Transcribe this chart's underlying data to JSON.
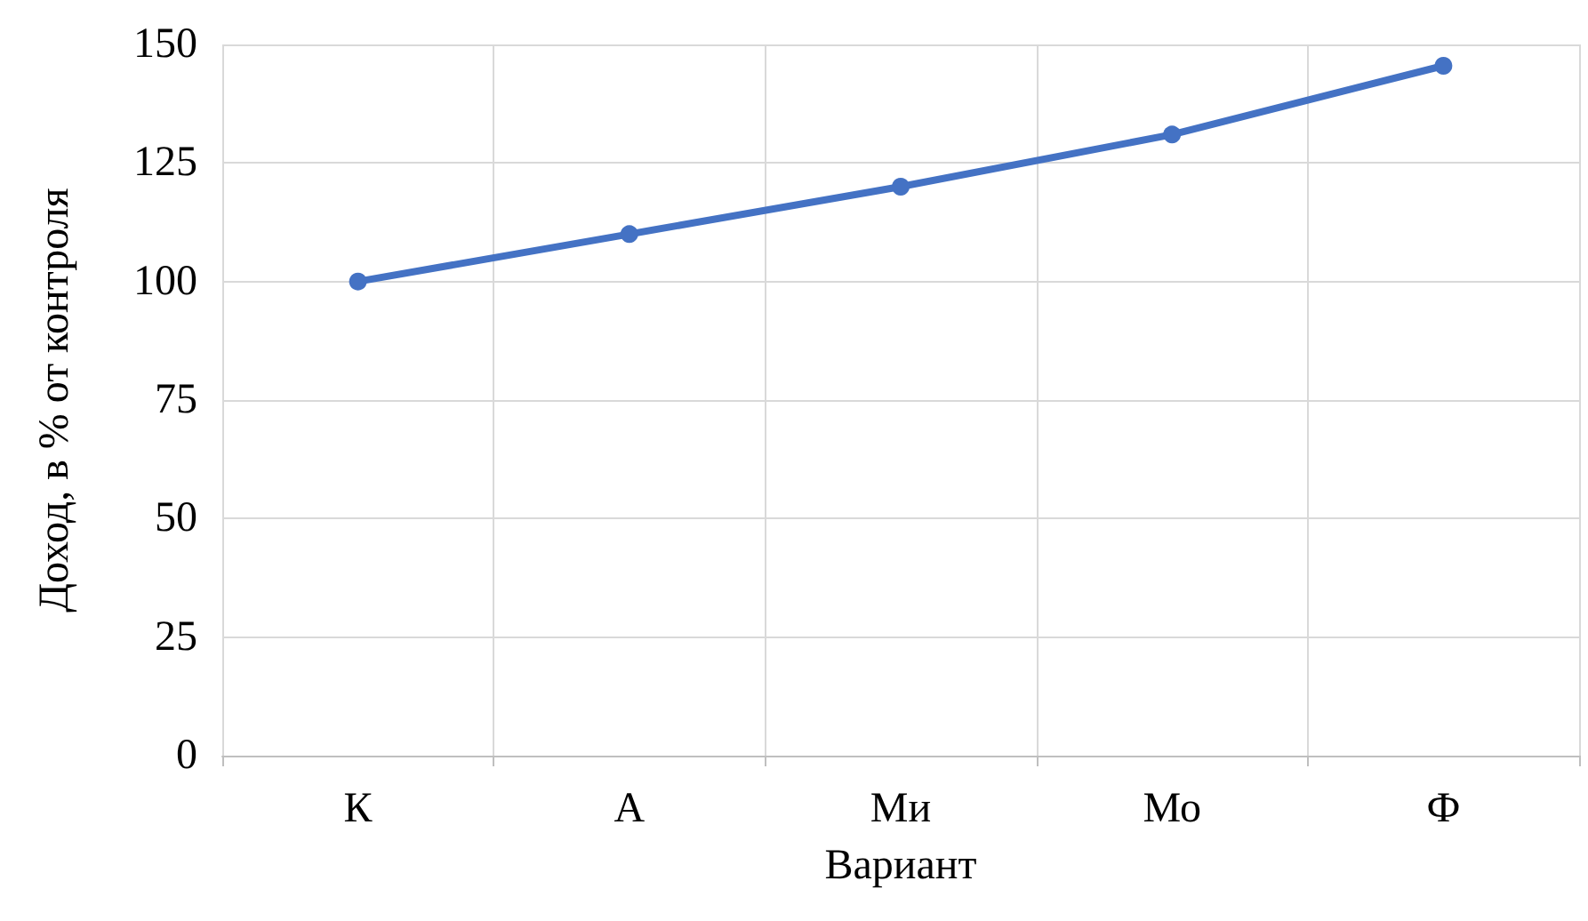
{
  "chart_data": {
    "type": "line",
    "xlabel": "Вариант",
    "ylabel": "Доход, в % от контроля",
    "categories": [
      "К",
      "А",
      "Ми",
      "Мо",
      "Ф"
    ],
    "series": [
      {
        "color": "#4472c4",
        "values": [
          100,
          110,
          120,
          131,
          145.5
        ]
      }
    ],
    "ylim": [
      0,
      150
    ],
    "yticks": [
      0,
      25,
      50,
      75,
      100,
      125,
      150
    ],
    "grid": true,
    "marker": "circle",
    "line_style": "solid"
  }
}
